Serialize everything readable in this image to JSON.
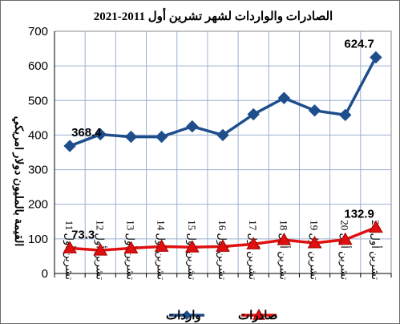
{
  "chart_data": {
    "type": "line",
    "title": "الصادرات والواردات لشهر تشرين أول 2011-2021",
    "ylabel": "القيمة بالمليون دولار امريكي",
    "xlabel": "",
    "ylim": [
      0,
      700
    ],
    "yticks": [
      0,
      100,
      200,
      300,
      400,
      500,
      600,
      700
    ],
    "grid": true,
    "legend_position": "bottom",
    "categories": [
      "تشرين أول 11",
      "تشرين أول 12",
      "تشرين أول 13",
      "تشرين أول 14",
      "تشرين أول 15",
      "تشرين أول 16",
      "تشرين أول 17",
      "تشرين أول 18",
      "تشرين أول 19",
      "تشرين أول 20",
      "تشرين أول 21"
    ],
    "series": [
      {
        "name": "واردات",
        "color": "#1f4e8c",
        "marker": "diamond",
        "values": [
          368.4,
          402,
          395,
          395,
          425,
          400,
          460,
          507,
          471,
          458,
          624.7
        ],
        "labels": {
          "0": "368.4",
          "10": "624.7"
        }
      },
      {
        "name": "صادرات",
        "color": "#e01010",
        "marker": "triangle",
        "values": [
          73.3,
          67,
          73,
          78,
          76,
          78,
          85,
          97,
          88,
          98,
          132.9
        ],
        "labels": {
          "0": "73.3",
          "10": "132.9"
        }
      }
    ]
  }
}
